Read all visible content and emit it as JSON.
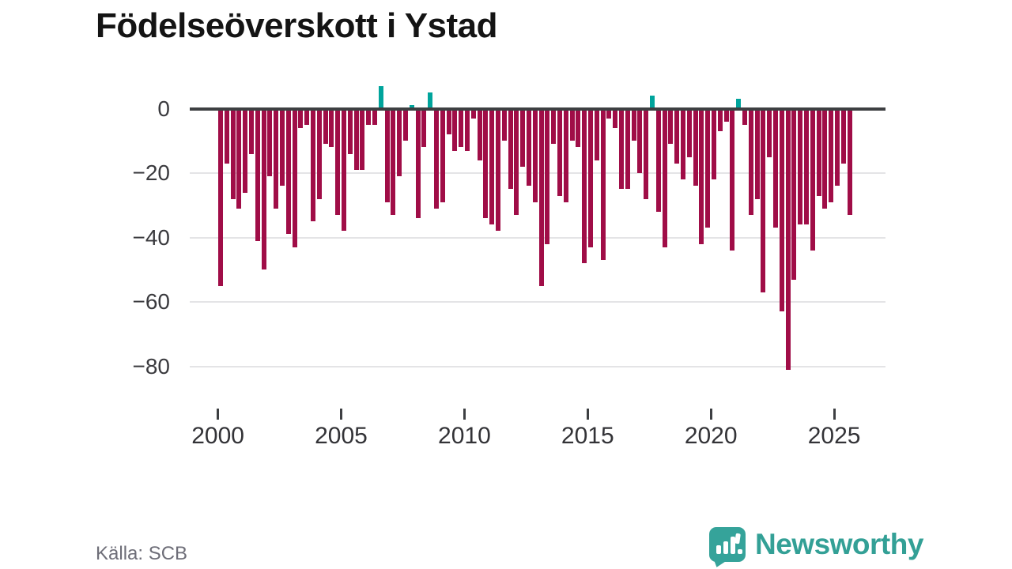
{
  "title": "Födelseöverskott i Ystad",
  "source": "Källa: SCB",
  "brand": {
    "name": "Newsworthy",
    "badge_icon": "bar-chart-exclamation"
  },
  "colors": {
    "negative_bar": "#a00d47",
    "positive_bar": "#00a49c",
    "zero_line": "#3d3f42",
    "gridline": "#e4e4e6",
    "brand_teal": "#33a096",
    "title_text": "#141414",
    "axis_text": "#3a3a3e",
    "source_text": "#6e6e78"
  },
  "chart_data": {
    "type": "bar",
    "title": "Födelseöverskott i Ystad",
    "xlabel": "",
    "ylabel": "",
    "frequency": "quarterly",
    "start_year": 2000,
    "start_quarter": 1,
    "x_tick_labels": [
      "2000",
      "2005",
      "2010",
      "2015",
      "2020",
      "2025"
    ],
    "y_tick_values": [
      0,
      -20,
      -40,
      -60,
      -80
    ],
    "y_tick_labels": [
      "0",
      "−20",
      "−40",
      "−60",
      "−80"
    ],
    "ylim": [
      -86,
      9
    ],
    "grid": "horizontal",
    "legend": "none",
    "values": [
      -55,
      -17,
      -28,
      -31,
      -26,
      -14,
      -41,
      -50,
      -21,
      -31,
      -24,
      -39,
      -43,
      -6,
      -5,
      -35,
      -28,
      -11,
      -12,
      -33,
      -38,
      -14,
      -19,
      -19,
      -5,
      -5,
      7,
      -29,
      -33,
      -21,
      -10,
      1,
      -34,
      -12,
      5,
      -31,
      -29,
      -8,
      -13,
      -12,
      -13,
      -3,
      -16,
      -34,
      -36,
      -38,
      -10,
      -25,
      -33,
      -18,
      -24,
      -29,
      -55,
      -42,
      -11,
      -27,
      -29,
      -10,
      -12,
      -48,
      -43,
      -16,
      -47,
      -3,
      -6,
      -25,
      -25,
      -10,
      -20,
      -28,
      4,
      -32,
      -43,
      -11,
      -17,
      -22,
      -15,
      -24,
      -42,
      -37,
      -22,
      -7,
      -4,
      -44,
      3,
      -5,
      -33,
      -28,
      -57,
      -15,
      -37,
      -63,
      -81,
      -53,
      -36,
      -36,
      -44,
      -27,
      -31,
      -29,
      -24,
      -17,
      -33
    ]
  }
}
